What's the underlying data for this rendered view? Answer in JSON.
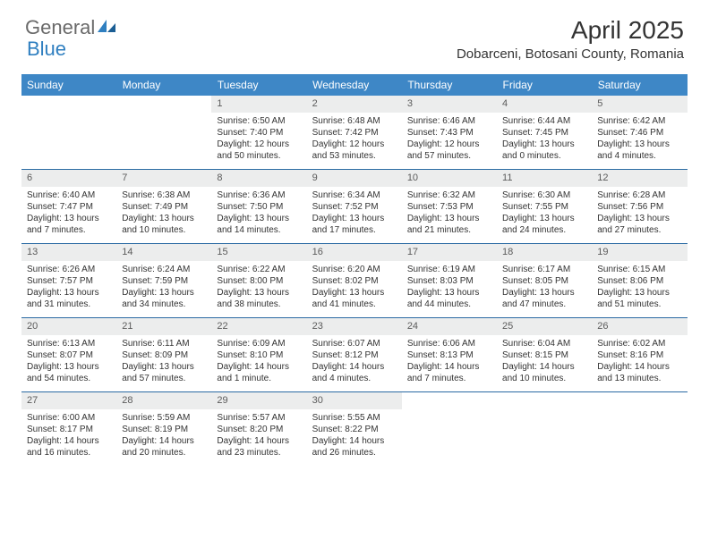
{
  "brand": {
    "g": "General",
    "b": "Blue"
  },
  "title": "April 2025",
  "location": "Dobarceni, Botosani County, Romania",
  "day_headers": [
    "Sunday",
    "Monday",
    "Tuesday",
    "Wednesday",
    "Thursday",
    "Friday",
    "Saturday"
  ],
  "colors": {
    "header_bg": "#3e87c6",
    "header_text": "#ffffff",
    "daynum_bg": "#eceded",
    "row_divider": "#2a6aa3",
    "text": "#333333",
    "brand_gray": "#6a6a6a",
    "brand_blue": "#2f7fc0"
  },
  "weeks": [
    [
      null,
      null,
      {
        "n": "1",
        "sr": "6:50 AM",
        "ss": "7:40 PM",
        "dl": "12 hours and 50 minutes."
      },
      {
        "n": "2",
        "sr": "6:48 AM",
        "ss": "7:42 PM",
        "dl": "12 hours and 53 minutes."
      },
      {
        "n": "3",
        "sr": "6:46 AM",
        "ss": "7:43 PM",
        "dl": "12 hours and 57 minutes."
      },
      {
        "n": "4",
        "sr": "6:44 AM",
        "ss": "7:45 PM",
        "dl": "13 hours and 0 minutes."
      },
      {
        "n": "5",
        "sr": "6:42 AM",
        "ss": "7:46 PM",
        "dl": "13 hours and 4 minutes."
      }
    ],
    [
      {
        "n": "6",
        "sr": "6:40 AM",
        "ss": "7:47 PM",
        "dl": "13 hours and 7 minutes."
      },
      {
        "n": "7",
        "sr": "6:38 AM",
        "ss": "7:49 PM",
        "dl": "13 hours and 10 minutes."
      },
      {
        "n": "8",
        "sr": "6:36 AM",
        "ss": "7:50 PM",
        "dl": "13 hours and 14 minutes."
      },
      {
        "n": "9",
        "sr": "6:34 AM",
        "ss": "7:52 PM",
        "dl": "13 hours and 17 minutes."
      },
      {
        "n": "10",
        "sr": "6:32 AM",
        "ss": "7:53 PM",
        "dl": "13 hours and 21 minutes."
      },
      {
        "n": "11",
        "sr": "6:30 AM",
        "ss": "7:55 PM",
        "dl": "13 hours and 24 minutes."
      },
      {
        "n": "12",
        "sr": "6:28 AM",
        "ss": "7:56 PM",
        "dl": "13 hours and 27 minutes."
      }
    ],
    [
      {
        "n": "13",
        "sr": "6:26 AM",
        "ss": "7:57 PM",
        "dl": "13 hours and 31 minutes."
      },
      {
        "n": "14",
        "sr": "6:24 AM",
        "ss": "7:59 PM",
        "dl": "13 hours and 34 minutes."
      },
      {
        "n": "15",
        "sr": "6:22 AM",
        "ss": "8:00 PM",
        "dl": "13 hours and 38 minutes."
      },
      {
        "n": "16",
        "sr": "6:20 AM",
        "ss": "8:02 PM",
        "dl": "13 hours and 41 minutes."
      },
      {
        "n": "17",
        "sr": "6:19 AM",
        "ss": "8:03 PM",
        "dl": "13 hours and 44 minutes."
      },
      {
        "n": "18",
        "sr": "6:17 AM",
        "ss": "8:05 PM",
        "dl": "13 hours and 47 minutes."
      },
      {
        "n": "19",
        "sr": "6:15 AM",
        "ss": "8:06 PM",
        "dl": "13 hours and 51 minutes."
      }
    ],
    [
      {
        "n": "20",
        "sr": "6:13 AM",
        "ss": "8:07 PM",
        "dl": "13 hours and 54 minutes."
      },
      {
        "n": "21",
        "sr": "6:11 AM",
        "ss": "8:09 PM",
        "dl": "13 hours and 57 minutes."
      },
      {
        "n": "22",
        "sr": "6:09 AM",
        "ss": "8:10 PM",
        "dl": "14 hours and 1 minute."
      },
      {
        "n": "23",
        "sr": "6:07 AM",
        "ss": "8:12 PM",
        "dl": "14 hours and 4 minutes."
      },
      {
        "n": "24",
        "sr": "6:06 AM",
        "ss": "8:13 PM",
        "dl": "14 hours and 7 minutes."
      },
      {
        "n": "25",
        "sr": "6:04 AM",
        "ss": "8:15 PM",
        "dl": "14 hours and 10 minutes."
      },
      {
        "n": "26",
        "sr": "6:02 AM",
        "ss": "8:16 PM",
        "dl": "14 hours and 13 minutes."
      }
    ],
    [
      {
        "n": "27",
        "sr": "6:00 AM",
        "ss": "8:17 PM",
        "dl": "14 hours and 16 minutes."
      },
      {
        "n": "28",
        "sr": "5:59 AM",
        "ss": "8:19 PM",
        "dl": "14 hours and 20 minutes."
      },
      {
        "n": "29",
        "sr": "5:57 AM",
        "ss": "8:20 PM",
        "dl": "14 hours and 23 minutes."
      },
      {
        "n": "30",
        "sr": "5:55 AM",
        "ss": "8:22 PM",
        "dl": "14 hours and 26 minutes."
      },
      null,
      null,
      null
    ]
  ],
  "labels": {
    "sunrise": "Sunrise:",
    "sunset": "Sunset:",
    "daylight": "Daylight:"
  }
}
